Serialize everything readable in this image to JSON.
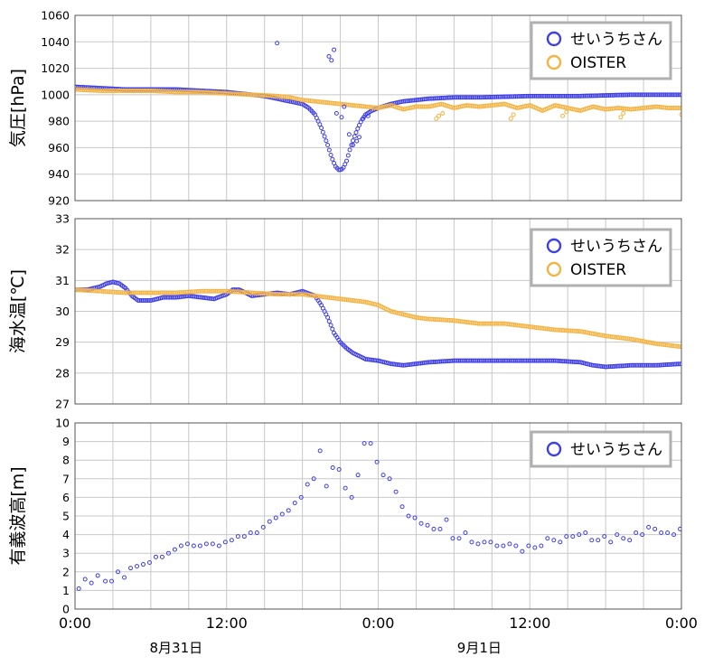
{
  "x_axis": {
    "tick_labels": [
      "0:00",
      "12:00",
      "0:00",
      "12:00",
      "0:00"
    ],
    "tick_hours": [
      0,
      12,
      24,
      36,
      48
    ],
    "range_hours": [
      0,
      48
    ],
    "date_labels": [
      "8月31日",
      "9月1日"
    ],
    "date_label_hours": [
      8,
      32
    ]
  },
  "colors": {
    "seiuchi": "#3f3fe8",
    "oister": "#f5b342",
    "grid": "#c8c8c8"
  },
  "legend_shape": "circle",
  "chart_data": [
    {
      "type": "scatter",
      "ylabel": "気圧[hPa]",
      "ylim": [
        920,
        1060
      ],
      "yticks": [
        920,
        940,
        960,
        980,
        1000,
        1020,
        1040,
        1060
      ],
      "grid": true,
      "legend_position": "top-right",
      "series": [
        {
          "name": "せいうちさん",
          "color": "#3f3fe8",
          "kind": "dense",
          "x": [
            0,
            2,
            4,
            6,
            8,
            10,
            12,
            14,
            15,
            16,
            17,
            18,
            18.5,
            19,
            19.5,
            20,
            20.3,
            20.6,
            20.9,
            21.2,
            21.5,
            21.8,
            22.1,
            22.4,
            22.7,
            23,
            23.5,
            24,
            25,
            26,
            28,
            30,
            32,
            36,
            40,
            44,
            48
          ],
          "y": [
            1006,
            1005,
            1004,
            1004,
            1004,
            1003,
            1002,
            1000,
            999,
            997,
            995,
            993,
            990,
            985,
            975,
            962,
            953,
            946,
            943,
            944,
            950,
            960,
            968,
            975,
            981,
            985,
            988,
            990,
            993,
            995,
            997,
            998,
            998,
            999,
            999,
            1000,
            1000
          ]
        },
        {
          "name": "OISTER",
          "color": "#f5b342",
          "kind": "dense",
          "x": [
            0,
            2,
            4,
            6,
            8,
            10,
            12,
            14,
            16,
            17,
            18,
            19,
            20,
            21,
            22,
            23,
            24,
            25,
            26,
            27,
            28,
            29,
            30,
            31,
            32,
            33,
            34,
            35,
            36,
            37,
            38,
            39,
            40,
            41,
            42,
            43,
            44,
            45,
            46,
            47,
            48
          ],
          "y": [
            1004,
            1003,
            1003,
            1003,
            1002,
            1002,
            1001,
            1000,
            999,
            998,
            996,
            995,
            994,
            993,
            992,
            991,
            990,
            992,
            989,
            991,
            991,
            993,
            990,
            992,
            991,
            992,
            993,
            990,
            992,
            988,
            992,
            990,
            988,
            991,
            989,
            990,
            989,
            990,
            991,
            990,
            990
          ]
        },
        {
          "name": "せいうちさん",
          "color": "#3f3fe8",
          "kind": "points",
          "x": [
            16,
            20.1,
            20.3,
            20.5,
            20.7,
            21.1,
            21.3,
            21.7,
            22.0,
            22.3,
            22.5,
            22.8,
            23.2
          ],
          "y": [
            1039,
            1029,
            1026,
            1034,
            986,
            983,
            991,
            970,
            962,
            965,
            968,
            982,
            984
          ]
        },
        {
          "name": "OISTER",
          "color": "#f5b342",
          "kind": "points",
          "x": [
            28.6,
            28.8,
            29.1,
            34.5,
            34.7,
            38.6,
            38.9,
            43.2,
            43.4,
            48.0
          ],
          "y": [
            982,
            984,
            986,
            982,
            985,
            984,
            987,
            983,
            986,
            985
          ]
        }
      ]
    },
    {
      "type": "scatter",
      "ylabel": "海水温[℃]",
      "ylim": [
        27,
        33
      ],
      "yticks": [
        27,
        28,
        29,
        30,
        31,
        32,
        33
      ],
      "grid": true,
      "legend_position": "top-right",
      "series": [
        {
          "name": "せいうちさん",
          "color": "#3f3fe8",
          "kind": "dense",
          "x": [
            0,
            1,
            2,
            2.5,
            3,
            3.5,
            4,
            4.5,
            5,
            6,
            7,
            8,
            9,
            10,
            11,
            12,
            12.5,
            13,
            13.5,
            14,
            15,
            16,
            17,
            18,
            19,
            19.5,
            20,
            20.5,
            21,
            21.5,
            22,
            22.5,
            23,
            24,
            25,
            26,
            27,
            28,
            30,
            32,
            34,
            36,
            38,
            40,
            41,
            42,
            44,
            46,
            48
          ],
          "y": [
            30.7,
            30.7,
            30.8,
            30.9,
            30.95,
            30.9,
            30.75,
            30.5,
            30.35,
            30.35,
            30.45,
            30.45,
            30.5,
            30.45,
            30.4,
            30.55,
            30.7,
            30.7,
            30.6,
            30.5,
            30.55,
            30.6,
            30.55,
            30.65,
            30.5,
            30.2,
            29.8,
            29.3,
            29.0,
            28.8,
            28.65,
            28.55,
            28.45,
            28.4,
            28.3,
            28.25,
            28.3,
            28.35,
            28.4,
            28.4,
            28.4,
            28.4,
            28.4,
            28.35,
            28.25,
            28.2,
            28.25,
            28.25,
            28.3
          ]
        },
        {
          "name": "OISTER",
          "color": "#f5b342",
          "kind": "dense",
          "x": [
            0,
            2,
            4,
            6,
            8,
            10,
            12,
            14,
            16,
            18,
            20,
            22,
            23,
            24,
            25,
            26,
            27,
            28,
            30,
            32,
            34,
            36,
            38,
            40,
            42,
            44,
            46,
            48
          ],
          "y": [
            30.7,
            30.65,
            30.6,
            30.6,
            30.6,
            30.65,
            30.65,
            30.6,
            30.55,
            30.55,
            30.45,
            30.35,
            30.3,
            30.2,
            30.0,
            29.9,
            29.8,
            29.75,
            29.7,
            29.6,
            29.6,
            29.5,
            29.4,
            29.35,
            29.2,
            29.1,
            28.95,
            28.85
          ]
        }
      ]
    },
    {
      "type": "scatter",
      "ylabel": "有義波高[m]",
      "ylim": [
        0,
        10
      ],
      "yticks": [
        0,
        1,
        2,
        3,
        4,
        5,
        6,
        7,
        8,
        9,
        10
      ],
      "grid": true,
      "legend_position": "top-right",
      "series": [
        {
          "name": "せいうちさん",
          "color": "#3f3fe8",
          "kind": "points",
          "x": [
            0.3,
            0.8,
            1.3,
            1.8,
            2.4,
            2.9,
            3.4,
            3.9,
            4.4,
            4.9,
            5.4,
            5.9,
            6.4,
            6.9,
            7.4,
            7.9,
            8.4,
            8.9,
            9.4,
            9.9,
            10.4,
            10.9,
            11.4,
            11.9,
            12.4,
            12.9,
            13.4,
            13.9,
            14.4,
            14.9,
            15.4,
            15.9,
            16.4,
            16.9,
            17.4,
            17.9,
            18.4,
            18.9,
            19.4,
            19.9,
            20.4,
            20.9,
            21.4,
            21.9,
            22.4,
            22.9,
            23.4,
            23.9,
            24.4,
            24.9,
            25.4,
            25.9,
            26.4,
            26.9,
            27.4,
            27.9,
            28.4,
            28.9,
            29.4,
            29.9,
            30.4,
            30.9,
            31.4,
            31.9,
            32.4,
            32.9,
            33.4,
            33.9,
            34.4,
            34.9,
            35.4,
            35.9,
            36.4,
            36.9,
            37.4,
            37.9,
            38.4,
            38.9,
            39.4,
            39.9,
            40.4,
            40.9,
            41.4,
            41.9,
            42.4,
            42.9,
            43.4,
            43.9,
            44.4,
            44.9,
            45.4,
            45.9,
            46.4,
            46.9,
            47.4,
            47.9
          ],
          "y": [
            1.1,
            1.6,
            1.4,
            1.8,
            1.5,
            1.5,
            2.0,
            1.7,
            2.2,
            2.3,
            2.4,
            2.5,
            2.8,
            2.8,
            3.0,
            3.2,
            3.4,
            3.5,
            3.4,
            3.4,
            3.5,
            3.5,
            3.4,
            3.6,
            3.7,
            3.9,
            3.9,
            4.1,
            4.1,
            4.4,
            4.7,
            4.9,
            5.1,
            5.3,
            5.7,
            6.0,
            6.7,
            7.0,
            8.5,
            6.6,
            7.6,
            7.5,
            6.5,
            6.0,
            7.2,
            8.9,
            8.9,
            7.9,
            7.2,
            7.0,
            6.3,
            5.5,
            5.0,
            4.9,
            4.6,
            4.5,
            4.3,
            4.3,
            4.8,
            3.8,
            3.8,
            4.1,
            3.6,
            3.5,
            3.6,
            3.6,
            3.4,
            3.4,
            3.5,
            3.4,
            3.1,
            3.4,
            3.3,
            3.4,
            3.8,
            3.7,
            3.6,
            3.9,
            3.9,
            4.0,
            4.1,
            3.7,
            3.7,
            3.9,
            3.6,
            4.0,
            3.8,
            3.7,
            4.1,
            4.0,
            4.4,
            4.3,
            4.1,
            4.1,
            4.0,
            4.3
          ]
        }
      ]
    }
  ]
}
